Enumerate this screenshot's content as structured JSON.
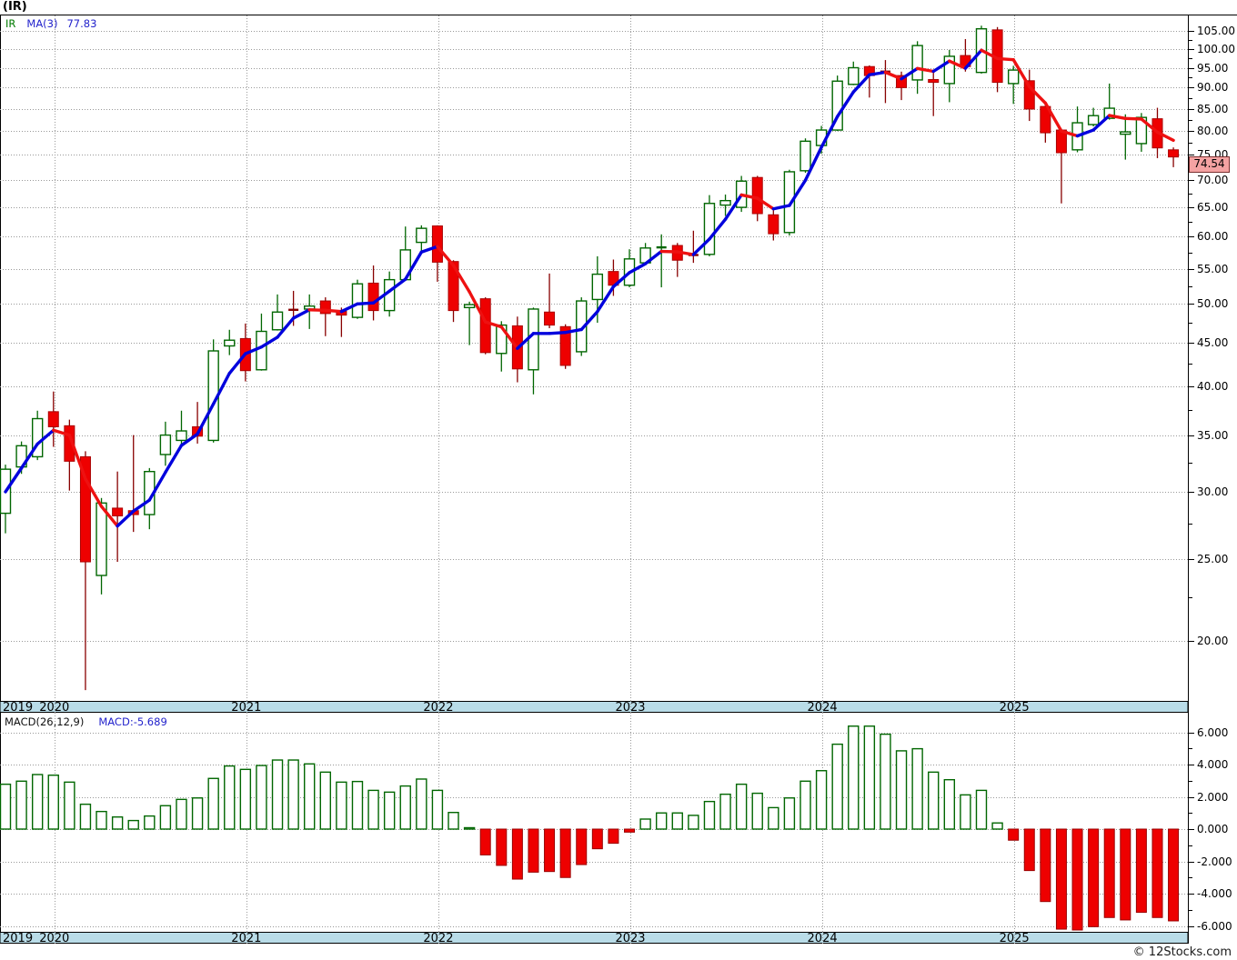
{
  "header": {
    "title": "(IR)"
  },
  "legend": {
    "symbol": "IR",
    "ma_label": "MA(3)",
    "ma_value": "77.83"
  },
  "price_axis": {
    "tick_labels": [
      "105.00",
      "100.00",
      "95.00",
      "90.00",
      "85.00",
      "80.00",
      "75.00",
      "70.00",
      "65.00",
      "60.00",
      "55.00",
      "50.00",
      "45.00",
      "40.00",
      "35.00",
      "30.00",
      "25.00",
      "20.00"
    ],
    "current_price_label": "74.54"
  },
  "macd_panel": {
    "indicator_label": "MACD(26,12,9)",
    "value_label": "MACD:-5.689",
    "tick_labels": [
      "6.000",
      "4.000",
      "2.000",
      "0.000",
      "-2.000",
      "-4.000",
      "-6.000"
    ]
  },
  "x_axis": {
    "year_labels": [
      "2019",
      "2020",
      "2021",
      "2022",
      "2023",
      "2024",
      "2025"
    ]
  },
  "footer": {
    "credit": "© 12Stocks.com"
  },
  "colors": {
    "up_stroke": "#006600",
    "up_fill": "#ffffff",
    "down_fill": "#ee0000",
    "down_stroke": "#aa0000",
    "down_wick": "#880000",
    "ma_up": "#0000dd",
    "ma_down": "#ee1111",
    "grid": "#999999",
    "strip_fill": "#b9dce8",
    "price_tag_fill": "#f4a2a2",
    "legend_blue": "#2323cc",
    "legend_green": "#007a00"
  },
  "chart_data": {
    "type": "candlestick",
    "symbol": "IR",
    "timeframe": "monthly",
    "price_scale": "log",
    "price_axis_range": [
      20,
      105
    ],
    "overlay": {
      "name": "MA(3)",
      "last_value": 77.83
    },
    "months": [
      "2019-10",
      "2019-11",
      "2019-12",
      "2020-01",
      "2020-02",
      "2020-03",
      "2020-04",
      "2020-05",
      "2020-06",
      "2020-07",
      "2020-08",
      "2020-09",
      "2020-10",
      "2020-11",
      "2020-12",
      "2021-01",
      "2021-02",
      "2021-03",
      "2021-04",
      "2021-05",
      "2021-06",
      "2021-07",
      "2021-08",
      "2021-09",
      "2021-10",
      "2021-11",
      "2021-12",
      "2022-01",
      "2022-02",
      "2022-03",
      "2022-04",
      "2022-05",
      "2022-06",
      "2022-07",
      "2022-08",
      "2022-09",
      "2022-10",
      "2022-11",
      "2022-12",
      "2023-01",
      "2023-02",
      "2023-03",
      "2023-04",
      "2023-05",
      "2023-06",
      "2023-07",
      "2023-08",
      "2023-09",
      "2023-10",
      "2023-11",
      "2023-12",
      "2024-01",
      "2024-02",
      "2024-03",
      "2024-04",
      "2024-05",
      "2024-06",
      "2024-07",
      "2024-08",
      "2024-09",
      "2024-10",
      "2024-11",
      "2024-12",
      "2025-01",
      "2025-02",
      "2025-03",
      "2025-04",
      "2025-05",
      "2025-06",
      "2025-07",
      "2025-08",
      "2025-09",
      "2025-10",
      "2025-11"
    ],
    "open": [
      28.3,
      32.1,
      33.0,
      37.3,
      35.9,
      33.0,
      23.9,
      28.7,
      28.5,
      28.2,
      33.2,
      34.5,
      35.8,
      34.5,
      44.6,
      45.5,
      41.8,
      46.6,
      49.2,
      49.3,
      50.4,
      49.0,
      48.2,
      52.9,
      49.1,
      53.4,
      59.1,
      61.8,
      56.1,
      49.5,
      50.7,
      43.7,
      47.1,
      41.8,
      48.9,
      47.0,
      43.9,
      50.6,
      54.6,
      52.6,
      55.9,
      58.0,
      58.6,
      57.1,
      57.2,
      65.4,
      65.0,
      70.5,
      63.7,
      60.7,
      71.8,
      76.9,
      80.2,
      90.8,
      95.3,
      94.0,
      93.0,
      91.9,
      92.0,
      91.0,
      98.2,
      93.8,
      105.3,
      91.0,
      91.7,
      85.5,
      80.2,
      76.0,
      81.4,
      82.8,
      79.3,
      77.3,
      82.7,
      76.0
    ],
    "high": [
      32.3,
      34.4,
      37.4,
      39.4,
      36.5,
      33.5,
      29.5,
      31.7,
      35.0,
      32.0,
      36.3,
      37.4,
      38.3,
      45.4,
      46.6,
      47.4,
      48.7,
      51.3,
      51.8,
      51.3,
      50.9,
      49.5,
      53.4,
      55.5,
      54.6,
      61.7,
      61.9,
      61.9,
      56.3,
      50.3,
      50.9,
      47.7,
      48.3,
      49.5,
      54.3,
      47.3,
      50.9,
      56.9,
      56.4,
      58.0,
      59.0,
      60.4,
      59.0,
      61.0,
      67.2,
      67.3,
      70.8,
      70.8,
      64.9,
      72.0,
      78.4,
      81.1,
      93.0,
      96.6,
      95.6,
      97.0,
      94.0,
      102.1,
      94.5,
      99.7,
      102.7,
      106.5,
      106.1,
      95.5,
      94.5,
      86.0,
      80.5,
      85.5,
      85.2,
      91.0,
      83.7,
      84.0,
      85.2,
      76.5
    ],
    "low": [
      26.8,
      31.5,
      32.7,
      33.9,
      30.1,
      17.5,
      22.7,
      24.8,
      26.9,
      27.1,
      32.2,
      34.1,
      34.2,
      34.3,
      43.5,
      40.5,
      41.7,
      46.5,
      47.1,
      46.7,
      45.8,
      45.7,
      48.0,
      47.8,
      48.3,
      53.3,
      57.4,
      53.1,
      47.6,
      44.7,
      43.6,
      41.6,
      40.4,
      39.1,
      46.8,
      41.9,
      43.4,
      47.5,
      51.1,
      52.3,
      55.7,
      52.3,
      53.8,
      55.9,
      56.9,
      63.5,
      64.2,
      62.6,
      59.4,
      60.2,
      71.4,
      75.2,
      80.0,
      90.6,
      87.6,
      86.3,
      87.0,
      88.5,
      83.3,
      86.5,
      94.0,
      93.5,
      88.9,
      86.1,
      82.2,
      77.5,
      65.7,
      75.5,
      81.0,
      82.5,
      74.0,
      75.6,
      74.3,
      72.5
    ],
    "close": [
      31.9,
      34.0,
      36.6,
      35.8,
      32.6,
      24.8,
      29.1,
      28.1,
      28.2,
      31.7,
      35.0,
      35.4,
      34.9,
      44.0,
      45.3,
      41.7,
      46.4,
      48.9,
      49.0,
      49.7,
      48.7,
      48.5,
      52.8,
      49.1,
      53.4,
      57.9,
      61.4,
      56.0,
      49.1,
      49.9,
      43.8,
      47.2,
      41.9,
      49.3,
      47.2,
      42.3,
      50.4,
      54.2,
      52.6,
      56.5,
      58.2,
      58.3,
      56.3,
      56.9,
      65.7,
      66.2,
      69.8,
      63.9,
      60.5,
      71.6,
      77.8,
      80.2,
      91.6,
      95.0,
      93.0,
      93.5,
      90.0,
      100.9,
      91.3,
      98.0,
      95.3,
      105.6,
      91.3,
      94.4,
      84.9,
      79.6,
      75.4,
      81.8,
      83.4,
      85.1,
      79.8,
      83.0,
      76.4,
      74.54
    ],
    "indicator": {
      "type": "bar",
      "name": "MACD(26,12,9)",
      "axis_range": [
        -6,
        6
      ],
      "last_value": -5.689,
      "values": [
        2.78,
        2.97,
        3.38,
        3.34,
        2.91,
        1.54,
        1.09,
        0.75,
        0.53,
        0.81,
        1.45,
        1.84,
        1.93,
        3.14,
        3.91,
        3.7,
        3.94,
        4.28,
        4.28,
        4.04,
        3.53,
        2.91,
        2.95,
        2.4,
        2.29,
        2.67,
        3.1,
        2.4,
        1.03,
        0.05,
        -1.6,
        -2.25,
        -3.1,
        -2.67,
        -2.63,
        -3.0,
        -2.2,
        -1.22,
        -0.88,
        -0.19,
        0.62,
        1.0,
        1.0,
        0.85,
        1.71,
        2.16,
        2.78,
        2.22,
        1.33,
        1.93,
        2.97,
        3.62,
        5.26,
        6.38,
        6.38,
        5.88,
        4.85,
        4.98,
        3.53,
        3.06,
        2.12,
        2.4,
        0.38,
        -0.69,
        -2.57,
        -4.49,
        -6.2,
        -6.35,
        -6.05,
        -5.48,
        -5.63,
        -5.16,
        -5.48,
        -5.689
      ]
    }
  }
}
